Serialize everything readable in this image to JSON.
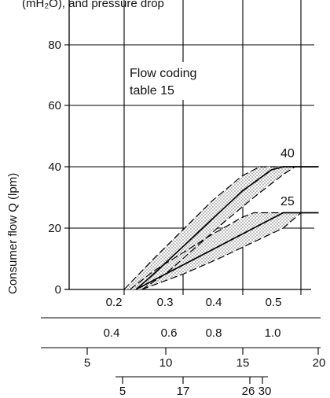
{
  "top_text": "(mH₂O), and pressure drop",
  "chart_data": {
    "type": "line",
    "ylabel": "Consumer flow Q (lpm)",
    "y_ticks": [
      0,
      20,
      40,
      60,
      80
    ],
    "ylim": [
      0,
      90
    ],
    "grid": true,
    "x_scales": [
      {
        "ticks": [
          "0.2",
          "0.3",
          "0.4",
          "0.5"
        ]
      },
      {
        "ticks": [
          "0.4",
          "0.6",
          "0.8",
          "1.0"
        ]
      },
      {
        "ticks": [
          "5",
          "10",
          "15",
          "20"
        ]
      },
      {
        "ticks": [
          "5",
          "17",
          "26",
          "30"
        ]
      }
    ],
    "annotation": [
      "Flow coding",
      "table 15"
    ],
    "series": [
      {
        "name": "40",
        "center": [
          [
            0.22,
            0
          ],
          [
            0.25,
            5
          ],
          [
            0.3,
            14
          ],
          [
            0.35,
            23
          ],
          [
            0.4,
            32
          ],
          [
            0.45,
            39
          ],
          [
            0.47,
            40
          ],
          [
            0.53,
            40
          ]
        ],
        "upper": [
          [
            0.2,
            0
          ],
          [
            0.25,
            10
          ],
          [
            0.3,
            19.5
          ],
          [
            0.35,
            29
          ],
          [
            0.4,
            37
          ],
          [
            0.43,
            40
          ],
          [
            0.47,
            40
          ]
        ],
        "lower": [
          [
            0.23,
            0
          ],
          [
            0.27,
            5
          ],
          [
            0.32,
            13.5
          ],
          [
            0.37,
            22
          ],
          [
            0.42,
            30
          ],
          [
            0.47,
            37.5
          ],
          [
            0.49,
            40
          ]
        ]
      },
      {
        "name": "25",
        "center": [
          [
            0.22,
            0
          ],
          [
            0.27,
            5
          ],
          [
            0.33,
            11
          ],
          [
            0.4,
            18
          ],
          [
            0.45,
            23
          ],
          [
            0.47,
            25
          ],
          [
            0.53,
            25
          ]
        ],
        "upper": [
          [
            0.21,
            0
          ],
          [
            0.25,
            6
          ],
          [
            0.3,
            12
          ],
          [
            0.35,
            18
          ],
          [
            0.4,
            23.5
          ],
          [
            0.42,
            25
          ],
          [
            0.47,
            25
          ]
        ],
        "lower": [
          [
            0.23,
            0
          ],
          [
            0.3,
            5
          ],
          [
            0.36,
            10
          ],
          [
            0.42,
            15.5
          ],
          [
            0.47,
            20
          ],
          [
            0.5,
            25
          ]
        ]
      }
    ]
  }
}
